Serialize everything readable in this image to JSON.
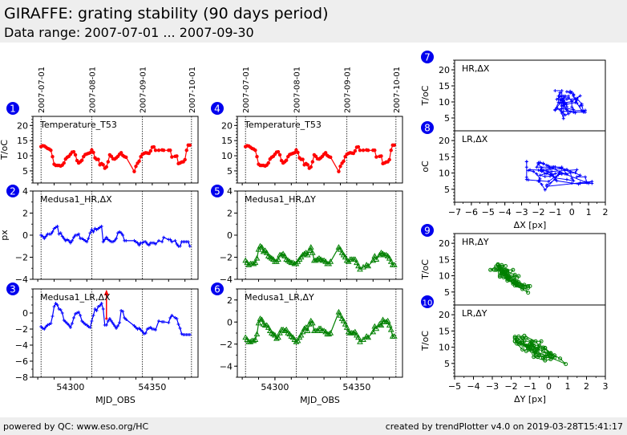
{
  "header": {
    "title": "GIRAFFE: grating stability (90 days period)",
    "subtitle": "Data range: 2007-07-01 ... 2007-09-30"
  },
  "footer": {
    "left": "powered by QC: www.eso.org/HC",
    "right": "created by trendPlotter v4.0 on 2019-03-28T15:41:17"
  },
  "colors": {
    "red": "#ff0000",
    "blue": "#0000ff",
    "green": "#008000",
    "badge": "#0000ee"
  },
  "chart_data": [
    {
      "id": 1,
      "badge": "1",
      "type": "line",
      "label": "Temperature_T53",
      "xlabel": "",
      "ylabel": "T/oC",
      "xlim": [
        54277,
        54378
      ],
      "ylim": [
        1,
        23
      ],
      "yticks": [
        5,
        10,
        15,
        20
      ],
      "color": "#ff0000",
      "marker": "circle",
      "date_lines": [
        54282,
        54313,
        54344,
        54374
      ],
      "date_labels": [
        "2007-07-01",
        "2007-08-01",
        "2007-09-01",
        "2007-10-01"
      ],
      "x": [
        54282,
        54283,
        54284,
        54285,
        54286,
        54287,
        54288,
        54289,
        54290,
        54291,
        54292,
        54293,
        54294,
        54295,
        54296,
        54297,
        54298,
        54299,
        54300,
        54301,
        54302,
        54303,
        54304,
        54305,
        54306,
        54307,
        54308,
        54309,
        54310,
        54311,
        54312,
        54313,
        54314,
        54315,
        54316,
        54317,
        54318,
        54319,
        54320,
        54321,
        54322,
        54323,
        54324,
        54325,
        54326,
        54327,
        54328,
        54329,
        54330,
        54331,
        54332,
        54333,
        54334,
        54339,
        54340,
        54341,
        54342,
        54343,
        54344,
        54345,
        54346,
        54347,
        54348,
        54349,
        54350,
        54351,
        54352,
        54354,
        54356,
        54357,
        54360,
        54361,
        54362,
        54364,
        54365,
        54366,
        54367,
        54368,
        54369,
        54370,
        54371,
        54372,
        54373
      ],
      "y": [
        13,
        13.3,
        13.2,
        12.8,
        12.4,
        12.2,
        11.8,
        9.7,
        7.2,
        6.8,
        6.8,
        6.8,
        6.6,
        6.9,
        7.6,
        8.9,
        9.5,
        9.8,
        10.5,
        11.2,
        11.3,
        10.3,
        8.4,
        7.6,
        8.0,
        8.5,
        9.7,
        10.4,
        10.6,
        10.8,
        11.0,
        11.9,
        11.1,
        9.3,
        8.8,
        8.8,
        7.0,
        7.4,
        7.0,
        5.9,
        6.3,
        8.0,
        10.3,
        9.8,
        9.0,
        8.9,
        9.3,
        9.8,
        10.5,
        11.0,
        10.1,
        9.7,
        9.5,
        4.8,
        6.5,
        7.5,
        8.2,
        9.7,
        10.5,
        10.8,
        11.0,
        10.9,
        10.8,
        11.6,
        12.8,
        12.9,
        11.8,
        11.8,
        11.9,
        11.8,
        11.8,
        11.8,
        9.6,
        9.8,
        9.9,
        7.4,
        7.6,
        7.9,
        8.0,
        8.7,
        11.8,
        13.5,
        13.5
      ]
    },
    {
      "id": 2,
      "badge": "2",
      "type": "line",
      "label": "Medusa1_HR,ΔX",
      "xlabel": "",
      "ylabel": "px",
      "xlim": [
        54277,
        54378
      ],
      "ylim": [
        -4,
        4
      ],
      "yticks": [
        -4,
        -2,
        0,
        2,
        4
      ],
      "color": "#0000ff",
      "marker": "plus",
      "date_lines": [
        54282,
        54313,
        54344,
        54374
      ],
      "x": [
        54282,
        54283,
        54284,
        54285,
        54286,
        54287,
        54288,
        54289,
        54290,
        54291,
        54292,
        54293,
        54294,
        54295,
        54296,
        54297,
        54298,
        54299,
        54300,
        54301,
        54302,
        54303,
        54304,
        54305,
        54306,
        54307,
        54308,
        54309,
        54310,
        54311,
        54312,
        54313,
        54314,
        54315,
        54316,
        54317,
        54318,
        54319,
        54320,
        54321,
        54322,
        54323,
        54324,
        54325,
        54326,
        54327,
        54328,
        54329,
        54330,
        54331,
        54332,
        54333,
        54334,
        54339,
        54340,
        54341,
        54342,
        54343,
        54344,
        54345,
        54346,
        54347,
        54348,
        54349,
        54350,
        54351,
        54352,
        54354,
        54356,
        54357,
        54360,
        54361,
        54362,
        54364,
        54365,
        54366,
        54367,
        54368,
        54369,
        54370,
        54371,
        54372,
        54373
      ],
      "y": [
        0,
        -0.1,
        -0.3,
        -0.1,
        0.1,
        0.1,
        0.1,
        0.3,
        0.6,
        0.7,
        0.8,
        0.1,
        0.2,
        -0.1,
        -0.3,
        -0.5,
        -0.4,
        -0.5,
        -0.7,
        -0.5,
        -0.2,
        0,
        0,
        0.1,
        -0.3,
        -0.3,
        -0.4,
        -0.5,
        -0.6,
        -0.3,
        0.2,
        0.5,
        0.3,
        0.6,
        0.5,
        0.6,
        0.7,
        0.8,
        -0.6,
        -0.4,
        -0.2,
        -0.4,
        -0.5,
        -0.6,
        -0.6,
        -0.5,
        -0.3,
        0.2,
        0.3,
        0.2,
        0,
        -0.5,
        -0.5,
        -0.5,
        -0.6,
        -0.7,
        -0.9,
        -0.7,
        -0.7,
        -0.6,
        -0.6,
        -0.8,
        -0.9,
        -0.7,
        -0.7,
        -0.7,
        -0.8,
        -0.5,
        -0.6,
        -0.2,
        -0.4,
        -0.4,
        -0.6,
        -0.5,
        -0.8,
        -1.0,
        -1.0,
        -0.6,
        -0.6,
        -0.6,
        -0.6,
        -0.6,
        -1.0
      ]
    },
    {
      "id": 3,
      "badge": "3",
      "type": "line",
      "label": "Medusa1_LR,ΔX",
      "xlabel": "MJD_OBS",
      "ylabel": "",
      "xlim": [
        54277,
        54378
      ],
      "ylim": [
        -8,
        3
      ],
      "yticks": [
        -8,
        -6,
        -4,
        -2,
        0
      ],
      "xticks": [
        54300,
        54350
      ],
      "color": "#0000ff",
      "marker": "plus",
      "date_lines": [
        54282,
        54313,
        54344,
        54374
      ],
      "outlier": {
        "x": 54322,
        "y_from": -0.7,
        "y_to": 2.8,
        "color": "#ff0000"
      },
      "x": [
        54282,
        54283,
        54284,
        54285,
        54286,
        54287,
        54288,
        54289,
        54290,
        54291,
        54292,
        54293,
        54294,
        54295,
        54296,
        54297,
        54298,
        54299,
        54300,
        54301,
        54302,
        54303,
        54304,
        54305,
        54306,
        54307,
        54308,
        54309,
        54310,
        54311,
        54312,
        54313,
        54314,
        54315,
        54316,
        54317,
        54318,
        54319,
        54320,
        54321,
        54322,
        54323,
        54324,
        54325,
        54326,
        54327,
        54328,
        54329,
        54330,
        54331,
        54332,
        54333,
        54334,
        54339,
        54340,
        54341,
        54342,
        54343,
        54344,
        54345,
        54346,
        54347,
        54348,
        54349,
        54350,
        54351,
        54352,
        54354,
        54356,
        54357,
        54360,
        54361,
        54362,
        54364,
        54365,
        54366,
        54367,
        54368,
        54369,
        54370,
        54371,
        54372,
        54373
      ],
      "y": [
        -1.7,
        -1.9,
        -2.0,
        -1.7,
        -1.5,
        -1.4,
        -1.3,
        -0.4,
        0.8,
        1.2,
        1.0,
        0.5,
        0.4,
        0,
        -0.9,
        -1.1,
        -1.3,
        -1.5,
        -1.8,
        -1.3,
        -0.6,
        -0.1,
        0,
        0.1,
        -0.3,
        -1.0,
        -1.2,
        -1.4,
        -1.5,
        -1.7,
        -1.8,
        -1.0,
        -0.3,
        0.5,
        0.3,
        0.8,
        0.9,
        1.2,
        0.5,
        -1.5,
        -1.5,
        -1.0,
        -0.7,
        -1.0,
        -1.3,
        -1.6,
        -1.9,
        -1.6,
        -1.2,
        0.3,
        0.2,
        -0.6,
        -0.8,
        -1.6,
        -1.8,
        -2.0,
        -1.9,
        -2.1,
        -2.3,
        -2.6,
        -2.5,
        -2.0,
        -1.9,
        -1.8,
        -2.0,
        -2.0,
        -2.1,
        -1.0,
        -1.1,
        -1.1,
        -1.2,
        -0.6,
        -0.3,
        -0.6,
        -0.7,
        -1.4,
        -1.9,
        -2.6,
        -2.7,
        -2.7,
        -2.7,
        -2.7,
        -2.7
      ]
    },
    {
      "id": 4,
      "badge": "4",
      "type": "line",
      "label": "Temperature_T53",
      "xlabel": "",
      "ylabel": "",
      "xlim": [
        54277,
        54378
      ],
      "ylim": [
        1,
        23
      ],
      "yticks": [
        5,
        10,
        15,
        20
      ],
      "color": "#ff0000",
      "marker": "circle",
      "date_lines": [
        54282,
        54313,
        54344,
        54374
      ],
      "date_labels": [
        "2007-07-01",
        "2007-08-01",
        "2007-09-01",
        "2007-10-01"
      ],
      "same_as": 1
    },
    {
      "id": 5,
      "badge": "5",
      "type": "line",
      "label": "Medusa1_HR,ΔY",
      "xlabel": "",
      "ylabel": "",
      "xlim": [
        54277,
        54378
      ],
      "ylim": [
        -4,
        4
      ],
      "yticks": [
        -4,
        -2,
        0,
        2,
        4
      ],
      "color": "#008000",
      "marker": "triangle",
      "date_lines": [
        54282,
        54313,
        54344,
        54374
      ],
      "x": [
        54282,
        54283,
        54284,
        54285,
        54286,
        54287,
        54288,
        54289,
        54290,
        54291,
        54292,
        54293,
        54294,
        54295,
        54296,
        54297,
        54298,
        54299,
        54300,
        54301,
        54302,
        54303,
        54304,
        54305,
        54306,
        54307,
        54308,
        54309,
        54310,
        54311,
        54312,
        54313,
        54314,
        54315,
        54316,
        54317,
        54318,
        54319,
        54320,
        54321,
        54322,
        54323,
        54324,
        54325,
        54326,
        54327,
        54328,
        54329,
        54330,
        54331,
        54332,
        54333,
        54334,
        54339,
        54340,
        54341,
        54342,
        54343,
        54344,
        54345,
        54346,
        54347,
        54348,
        54349,
        54350,
        54351,
        54352,
        54354,
        54356,
        54357,
        54360,
        54361,
        54362,
        54364,
        54365,
        54366,
        54367,
        54368,
        54369,
        54370,
        54371,
        54372,
        54373
      ],
      "y": [
        -2.3,
        -2.5,
        -2.7,
        -2.6,
        -2.6,
        -2.6,
        -2.5,
        -2.1,
        -1.3,
        -1.0,
        -1.1,
        -1.5,
        -1.4,
        -1.6,
        -1.9,
        -2.0,
        -2.1,
        -2.2,
        -2.4,
        -2.4,
        -2.2,
        -1.8,
        -1.8,
        -1.7,
        -1.9,
        -2.2,
        -2.3,
        -2.4,
        -2.5,
        -2.5,
        -2.6,
        -2.6,
        -2.4,
        -2.2,
        -2.0,
        -1.8,
        -1.7,
        -1.6,
        -1.8,
        -1.4,
        -1.1,
        -1.6,
        -2.3,
        -2.3,
        -2.2,
        -2.1,
        -2.2,
        -2.3,
        -2.3,
        -2.4,
        -2.6,
        -2.6,
        -2.4,
        -1.1,
        -1.3,
        -1.6,
        -1.8,
        -2.0,
        -2.3,
        -2.4,
        -2.2,
        -2.2,
        -2.2,
        -2.2,
        -2.5,
        -2.8,
        -3.1,
        -2.9,
        -2.7,
        -2.8,
        -2.3,
        -1.9,
        -2.2,
        -1.8,
        -1.6,
        -1.7,
        -1.8,
        -1.8,
        -1.9,
        -2.1,
        -2.4,
        -2.7,
        -2.7
      ]
    },
    {
      "id": 6,
      "badge": "6",
      "type": "line",
      "label": "Medusa1_LR,ΔY",
      "xlabel": "MJD_OBS",
      "ylabel": "",
      "xlim": [
        54277,
        54378
      ],
      "ylim": [
        -5,
        3
      ],
      "yticks": [
        -4,
        -2,
        0,
        2
      ],
      "xticks": [
        54300,
        54350
      ],
      "color": "#008000",
      "marker": "triangle",
      "date_lines": [
        54282,
        54313,
        54344,
        54374
      ],
      "x": [
        54282,
        54283,
        54284,
        54285,
        54286,
        54287,
        54288,
        54289,
        54290,
        54291,
        54292,
        54293,
        54294,
        54295,
        54296,
        54297,
        54298,
        54299,
        54300,
        54301,
        54302,
        54303,
        54304,
        54305,
        54306,
        54307,
        54308,
        54309,
        54310,
        54311,
        54312,
        54313,
        54314,
        54315,
        54316,
        54317,
        54318,
        54319,
        54320,
        54321,
        54322,
        54323,
        54324,
        54325,
        54326,
        54327,
        54328,
        54329,
        54330,
        54331,
        54332,
        54333,
        54334,
        54339,
        54340,
        54341,
        54342,
        54343,
        54344,
        54345,
        54346,
        54347,
        54348,
        54349,
        54350,
        54351,
        54352,
        54354,
        54356,
        54357,
        54360,
        54361,
        54362,
        54364,
        54365,
        54366,
        54367,
        54368,
        54369,
        54370,
        54371,
        54372,
        54373
      ],
      "y": [
        -1.4,
        -1.6,
        -1.8,
        -1.8,
        -1.7,
        -1.7,
        -1.6,
        -1.1,
        -0.1,
        0.3,
        0.2,
        -0.2,
        -0.3,
        -0.3,
        -0.5,
        -0.8,
        -1.0,
        -1.1,
        -1.2,
        -1.5,
        -1.4,
        -1.0,
        -0.7,
        -0.7,
        -0.8,
        -0.7,
        -1.0,
        -1.1,
        -1.3,
        -1.4,
        -1.6,
        -1.8,
        -1.7,
        -1.4,
        -1.2,
        -0.9,
        -0.6,
        -0.5,
        -0.8,
        -0.2,
        0.1,
        -0.1,
        -0.8,
        -0.8,
        -0.8,
        -0.6,
        -0.6,
        -0.8,
        -0.8,
        -0.9,
        -1.1,
        -1.1,
        -1.0,
        0.9,
        0.6,
        0.3,
        0.1,
        -0.2,
        -0.5,
        -0.9,
        -1.0,
        -1.0,
        -1.0,
        -0.9,
        -1.2,
        -1.4,
        -1.8,
        -1.6,
        -1.3,
        -1.4,
        -0.9,
        -0.4,
        -0.6,
        -0.2,
        -0.3,
        0.2,
        0.0,
        0.0,
        0.1,
        -0.3,
        -0.7,
        -1.3,
        -1.3
      ]
    },
    {
      "id": 7,
      "badge": "7",
      "type": "scatter",
      "label": "HR,ΔX",
      "xlabel": "",
      "ylabel": "T/oC",
      "xlim": [
        -7,
        2
      ],
      "ylim": [
        1,
        23
      ],
      "yticks": [
        5,
        10,
        15,
        20
      ],
      "color": "#0000ff",
      "marker": "plus",
      "x_from_series": 2,
      "y_from_series": 1
    },
    {
      "id": 8,
      "badge": "8",
      "type": "scatter",
      "label": "LR,ΔX",
      "xlabel": "ΔX [px]",
      "ylabel": "oC",
      "xlim": [
        -7,
        2
      ],
      "ylim": [
        1,
        23
      ],
      "yticks": [
        5,
        10,
        15,
        20
      ],
      "xticks": [
        -7,
        -6,
        -5,
        -4,
        -3,
        -2,
        -1,
        0,
        1,
        2
      ],
      "color": "#0000ff",
      "marker": "plus",
      "x_from_series": 3,
      "y_from_series": 1
    },
    {
      "id": 9,
      "badge": "9",
      "type": "scatter",
      "label": "HR,ΔY",
      "xlabel": "",
      "ylabel": "T/oC",
      "xlim": [
        -5,
        3
      ],
      "ylim": [
        1,
        23
      ],
      "yticks": [
        5,
        10,
        15,
        20
      ],
      "color": "#008000",
      "marker": "circle",
      "x_from_series": 5,
      "y_from_series": 1
    },
    {
      "id": 10,
      "badge": "10",
      "type": "scatter",
      "label": "LR,ΔY",
      "xlabel": "ΔY [px]",
      "ylabel": "T/oC",
      "xlim": [
        -5,
        3
      ],
      "ylim": [
        1,
        23
      ],
      "yticks": [
        5,
        10,
        15,
        20
      ],
      "xticks": [
        -5,
        -4,
        -3,
        -2,
        -1,
        0,
        1,
        2,
        3
      ],
      "color": "#008000",
      "marker": "circle",
      "x_from_series": 6,
      "y_from_series": 1
    }
  ]
}
